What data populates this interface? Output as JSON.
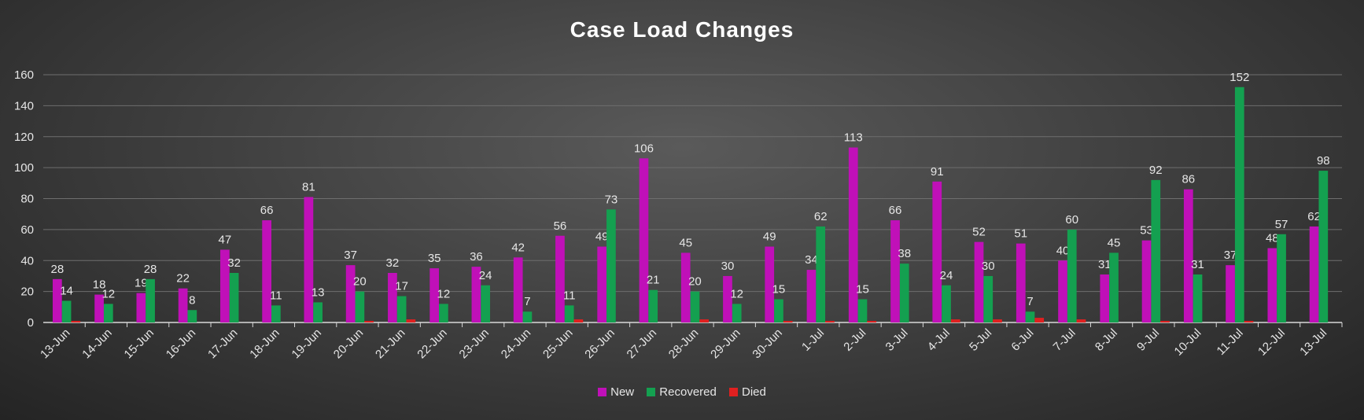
{
  "colors": {
    "New": "#c010b8",
    "Recovered": "#14a050",
    "Died": "#e02020",
    "axis": "#d9d9d9",
    "grid": "#6e6e6e"
  },
  "chart_data": {
    "type": "bar",
    "title": "Case Load Changes",
    "xlabel": "",
    "ylabel": "",
    "ylim": [
      0,
      160
    ],
    "yticks": [
      0,
      20,
      40,
      60,
      80,
      100,
      120,
      140,
      160
    ],
    "grid": true,
    "legend_position": "bottom",
    "categories": [
      "13-Jun",
      "14-Jun",
      "15-Jun",
      "16-Jun",
      "17-Jun",
      "18-Jun",
      "19-Jun",
      "20-Jun",
      "21-Jun",
      "22-Jun",
      "23-Jun",
      "24-Jun",
      "25-Jun",
      "26-Jun",
      "27-Jun",
      "28-Jun",
      "29-Jun",
      "30-Jun",
      "1-Jul",
      "2-Jul",
      "3-Jul",
      "4-Jul",
      "5-Jul",
      "6-Jul",
      "7-Jul",
      "8-Jul",
      "9-Jul",
      "10-Jul",
      "11-Jul",
      "12-Jul",
      "13-Jul"
    ],
    "series": [
      {
        "name": "New",
        "values": [
          28,
          18,
          19,
          22,
          47,
          66,
          81,
          37,
          32,
          35,
          36,
          42,
          56,
          49,
          106,
          45,
          30,
          49,
          34,
          113,
          66,
          91,
          52,
          51,
          40,
          31,
          53,
          86,
          37,
          48,
          62
        ]
      },
      {
        "name": "Recovered",
        "values": [
          14,
          12,
          28,
          8,
          32,
          11,
          13,
          20,
          17,
          12,
          24,
          7,
          11,
          73,
          21,
          20,
          12,
          15,
          62,
          15,
          38,
          24,
          30,
          7,
          60,
          45,
          92,
          31,
          152,
          57,
          98
        ]
      },
      {
        "name": "Died",
        "values": [
          1,
          0,
          0,
          0,
          0,
          0,
          0,
          1,
          2,
          0,
          0,
          0,
          2,
          0,
          0,
          2,
          0,
          1,
          1,
          1,
          0,
          2,
          2,
          3,
          2,
          0,
          1,
          0,
          1,
          0,
          0
        ]
      }
    ]
  }
}
